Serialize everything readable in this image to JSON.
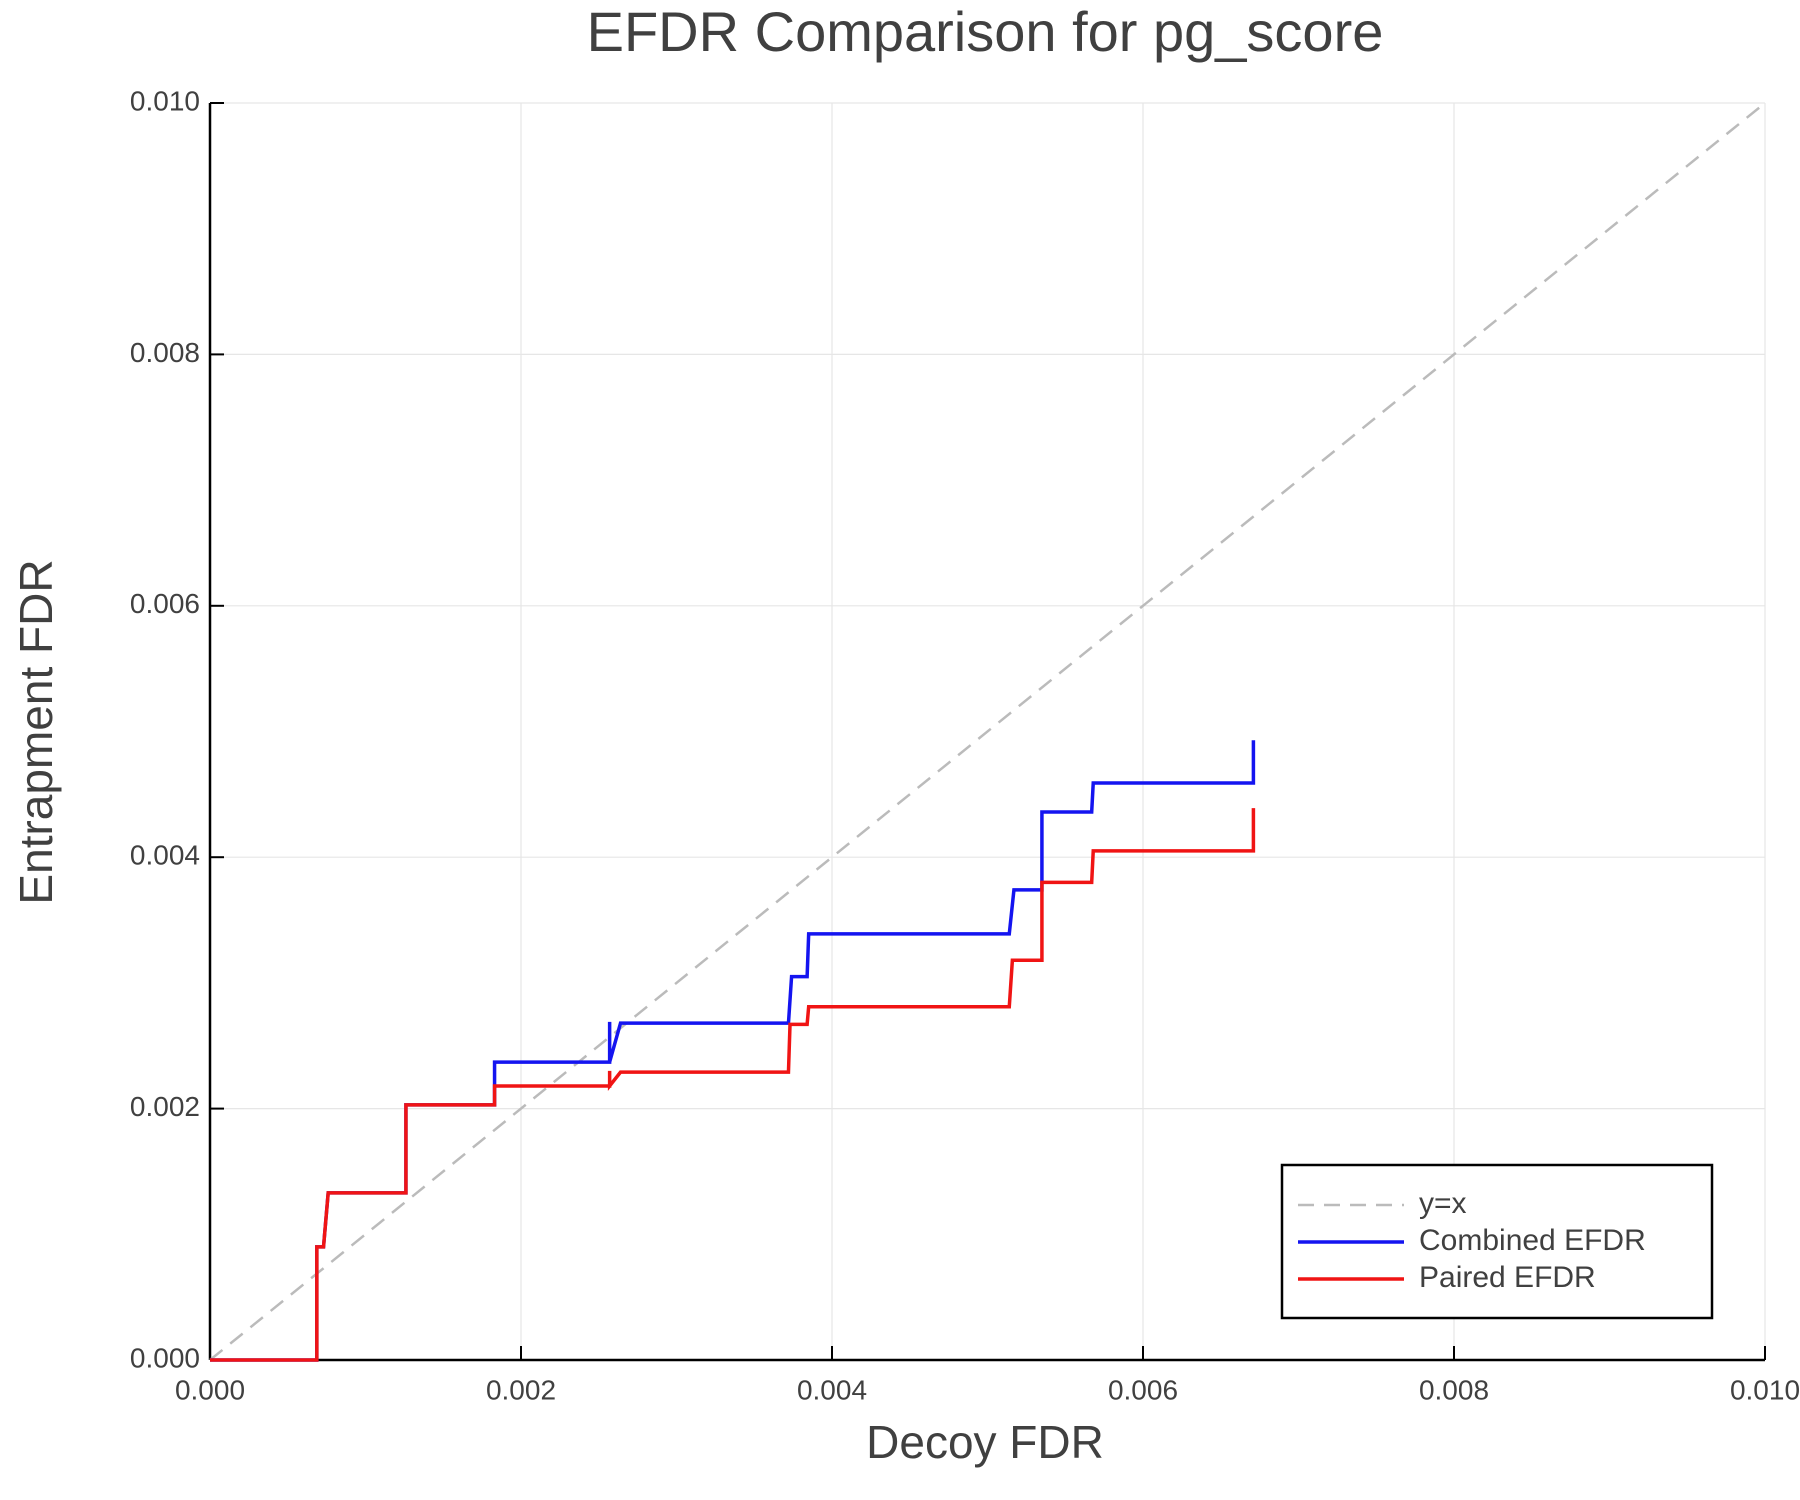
{
  "chart_data": {
    "type": "line",
    "title": "EFDR Comparison for pg_score",
    "xlabel": "Decoy FDR",
    "ylabel": "Entrapment FDR",
    "xlim": [
      0,
      0.01
    ],
    "ylim": [
      0,
      0.01
    ],
    "xticks": [
      {
        "value": 0,
        "label": "0.000"
      },
      {
        "value": 0.002,
        "label": "0.002"
      },
      {
        "value": 0.004,
        "label": "0.004"
      },
      {
        "value": 0.006,
        "label": "0.006"
      },
      {
        "value": 0.008,
        "label": "0.008"
      },
      {
        "value": 0.01,
        "label": "0.010"
      }
    ],
    "yticks": [
      {
        "value": 0,
        "label": "0.000"
      },
      {
        "value": 0.002,
        "label": "0.002"
      },
      {
        "value": 0.004,
        "label": "0.004"
      },
      {
        "value": 0.006,
        "label": "0.006"
      },
      {
        "value": 0.008,
        "label": "0.008"
      },
      {
        "value": 0.01,
        "label": "0.010"
      }
    ],
    "grid": true,
    "legend": "bottom right",
    "series": [
      {
        "name": "y=x",
        "color": "#bbbbbb",
        "dashed": true,
        "x": [
          0,
          0.01
        ],
        "values": [
          0,
          0.01
        ]
      },
      {
        "name": "Combined EFDR",
        "color": "#1414f0",
        "dashed": false,
        "x": [
          0,
          0.000687,
          0.000687,
          0.00073,
          0.00076,
          0.00126,
          0.00126,
          0.00183,
          0.00183,
          0.00257,
          0.00257,
          0.00257,
          0.00264,
          0.00372,
          0.00374,
          0.00384,
          0.00385,
          0.00514,
          0.00517,
          0.00535,
          0.00535,
          0.00567,
          0.00568,
          0.00671,
          0.00671
        ],
        "values": [
          0,
          0,
          0.0009,
          0.0009,
          0.00133,
          0.00133,
          0.00203,
          0.00203,
          0.00237,
          0.00237,
          0.00269,
          0.00237,
          0.00268,
          0.00268,
          0.00305,
          0.00305,
          0.00339,
          0.00339,
          0.00374,
          0.00374,
          0.00436,
          0.00436,
          0.00459,
          0.00459,
          0.00493
        ]
      },
      {
        "name": "Paired EFDR",
        "color": "#f01414",
        "dashed": false,
        "x": [
          0,
          0.000687,
          0.000687,
          0.00073,
          0.00076,
          0.00126,
          0.00126,
          0.00183,
          0.00183,
          0.00257,
          0.00257,
          0.00257,
          0.00264,
          0.00372,
          0.00373,
          0.00384,
          0.00385,
          0.00514,
          0.00516,
          0.00535,
          0.00535,
          0.00567,
          0.00568,
          0.00671,
          0.00671
        ],
        "values": [
          0,
          0,
          0.0009,
          0.0009,
          0.00133,
          0.00133,
          0.00203,
          0.00203,
          0.00218,
          0.00218,
          0.0023,
          0.00218,
          0.00229,
          0.00229,
          0.00267,
          0.00267,
          0.00281,
          0.00281,
          0.00318,
          0.00318,
          0.0038,
          0.0038,
          0.00405,
          0.00405,
          0.00439
        ]
      }
    ]
  }
}
